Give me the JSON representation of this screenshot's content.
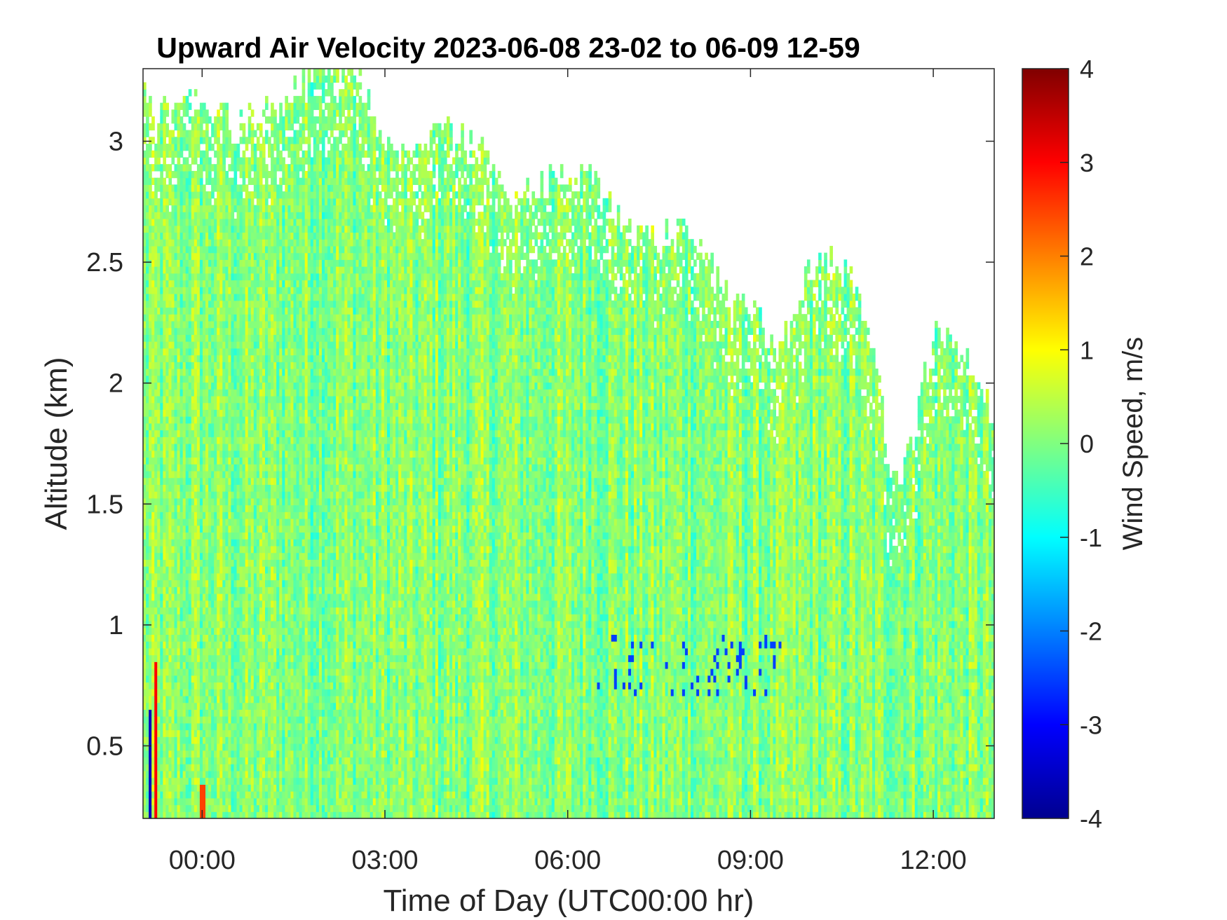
{
  "chart_data": {
    "type": "heatmap",
    "title": "Upward Air Velocity 2023-06-08 23-02 to 06-09 12-59",
    "xlabel": "Time of Day (UTC00:00 hr)",
    "ylabel": "Altitude (km)",
    "xlim_hours": [
      -0.97,
      13.0
    ],
    "ylim": [
      0.2,
      3.3
    ],
    "x_ticks": [
      {
        "value": 0,
        "label": "00:00"
      },
      {
        "value": 3,
        "label": "03:00"
      },
      {
        "value": 6,
        "label": "06:00"
      },
      {
        "value": 9,
        "label": "09:00"
      },
      {
        "value": 12,
        "label": "12:00"
      }
    ],
    "y_ticks": [
      {
        "value": 0.5,
        "label": "0.5"
      },
      {
        "value": 1,
        "label": "1"
      },
      {
        "value": 1.5,
        "label": "1.5"
      },
      {
        "value": 2,
        "label": "2"
      },
      {
        "value": 2.5,
        "label": "2.5"
      },
      {
        "value": 3,
        "label": "3"
      }
    ],
    "colorbar": {
      "label": "Wind Speed, m/s",
      "colormap": "jet",
      "clim": [
        -4,
        4
      ],
      "ticks": [
        {
          "value": 4,
          "label": "4"
        },
        {
          "value": 3,
          "label": "3"
        },
        {
          "value": 2,
          "label": "2"
        },
        {
          "value": 1,
          "label": "1"
        },
        {
          "value": 0,
          "label": "0"
        },
        {
          "value": -1,
          "label": "-1"
        },
        {
          "value": -2,
          "label": "-2"
        },
        {
          "value": -3,
          "label": "-3"
        },
        {
          "value": -4,
          "label": "-4"
        }
      ]
    },
    "data_top_altitude_profile": [
      {
        "t": -0.97,
        "top": 3.17
      },
      {
        "t": -0.5,
        "top": 3.1
      },
      {
        "t": 0,
        "top": 3.17
      },
      {
        "t": 0.5,
        "top": 3.05
      },
      {
        "t": 1.0,
        "top": 3.1
      },
      {
        "t": 1.5,
        "top": 3.2
      },
      {
        "t": 2.0,
        "top": 3.3
      },
      {
        "t": 2.5,
        "top": 3.3
      },
      {
        "t": 3.0,
        "top": 3.0
      },
      {
        "t": 3.5,
        "top": 3.0
      },
      {
        "t": 4.0,
        "top": 3.05
      },
      {
        "t": 4.5,
        "top": 3.0
      },
      {
        "t": 5.0,
        "top": 2.75
      },
      {
        "t": 5.5,
        "top": 2.8
      },
      {
        "t": 6.0,
        "top": 2.9
      },
      {
        "t": 6.5,
        "top": 2.8
      },
      {
        "t": 7.0,
        "top": 2.65
      },
      {
        "t": 7.5,
        "top": 2.6
      },
      {
        "t": 8.0,
        "top": 2.65
      },
      {
        "t": 8.5,
        "top": 2.4
      },
      {
        "t": 9.0,
        "top": 2.3
      },
      {
        "t": 9.5,
        "top": 2.15
      },
      {
        "t": 10.0,
        "top": 2.5
      },
      {
        "t": 10.5,
        "top": 2.5
      },
      {
        "t": 11.0,
        "top": 2.2
      },
      {
        "t": 11.3,
        "top": 1.6
      },
      {
        "t": 11.6,
        "top": 1.68
      },
      {
        "t": 12.0,
        "top": 2.2
      },
      {
        "t": 12.5,
        "top": 2.1
      },
      {
        "t": 13.0,
        "top": 1.85
      }
    ],
    "typical_value_range": [
      -1.0,
      1.0
    ],
    "notable_features": [
      {
        "description": "strong updraft near surface",
        "t": -0.75,
        "alt_range": [
          0.2,
          0.85
        ],
        "value": 3.0
      },
      {
        "description": "strong downdraft near surface",
        "t": -0.85,
        "alt_range": [
          0.2,
          0.65
        ],
        "value": -3.5
      },
      {
        "description": "updraft streak",
        "t": 0.0,
        "alt_range": [
          0.2,
          0.33
        ],
        "value": 2.5
      },
      {
        "description": "downdraft band",
        "t_range": [
          6.5,
          9.5
        ],
        "alt_range": [
          0.7,
          0.95
        ],
        "value": -2.5
      }
    ]
  }
}
